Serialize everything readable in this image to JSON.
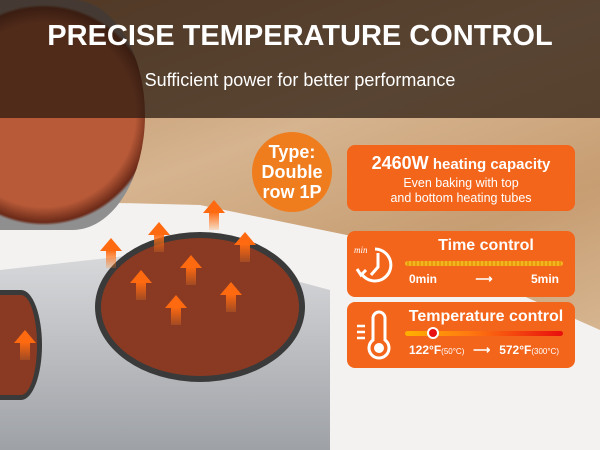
{
  "header": {
    "title": "PRECISE TEMPERATURE CONTROL",
    "subtitle": "Sufficient power for better performance"
  },
  "badge": {
    "line1": "Type:",
    "line2": "Double",
    "line3": "row 1P"
  },
  "power": {
    "value": "2460W",
    "label": "heating capacity",
    "desc1": "Even baking with top",
    "desc2": "and bottom heating tubes"
  },
  "time": {
    "title": "Time control",
    "icon": "clock-min-icon",
    "min": "0min",
    "max": "5min",
    "arrow": "⟶"
  },
  "temperature": {
    "title": "Temperature control",
    "icon": "thermometer-icon",
    "min": "122°F",
    "min_c": "(50°C)",
    "max": "572°F",
    "max_c": "(300°C)",
    "arrow": "⟶",
    "level_percent": 18
  },
  "colors": {
    "accent": "#f2651b",
    "badge": "#ef7d1e"
  }
}
